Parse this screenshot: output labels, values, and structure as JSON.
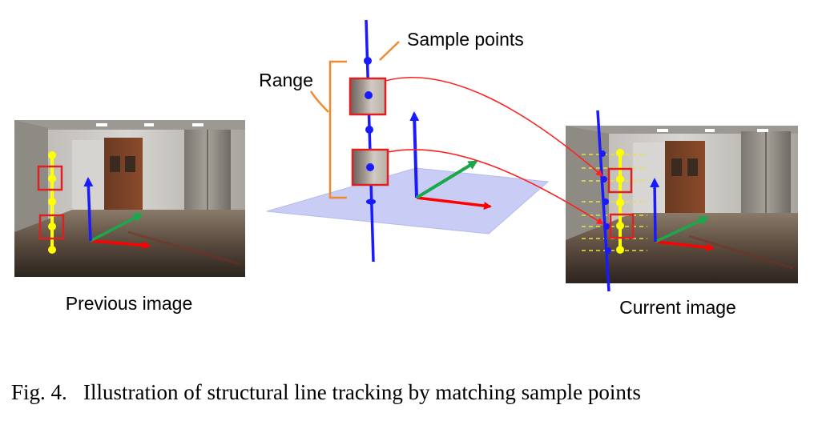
{
  "labels": {
    "sample_points": "Sample points",
    "range": "Range",
    "previous_image": "Previous image",
    "current_image": "Current image"
  },
  "caption": "Fig. 4.   Illustration of structural line tracking by matching sample points",
  "colors": {
    "line_blue": "#1a1aff",
    "sample_yellow": "#ffff00",
    "box_red": "#e02020",
    "axis_red": "#ff0000",
    "axis_green": "#1aa84a",
    "axis_blue": "#1a1aff",
    "plane_fill": "#c9cdf5",
    "range_orange": "#f08a30",
    "dashed_yellow": "#e8e040"
  }
}
